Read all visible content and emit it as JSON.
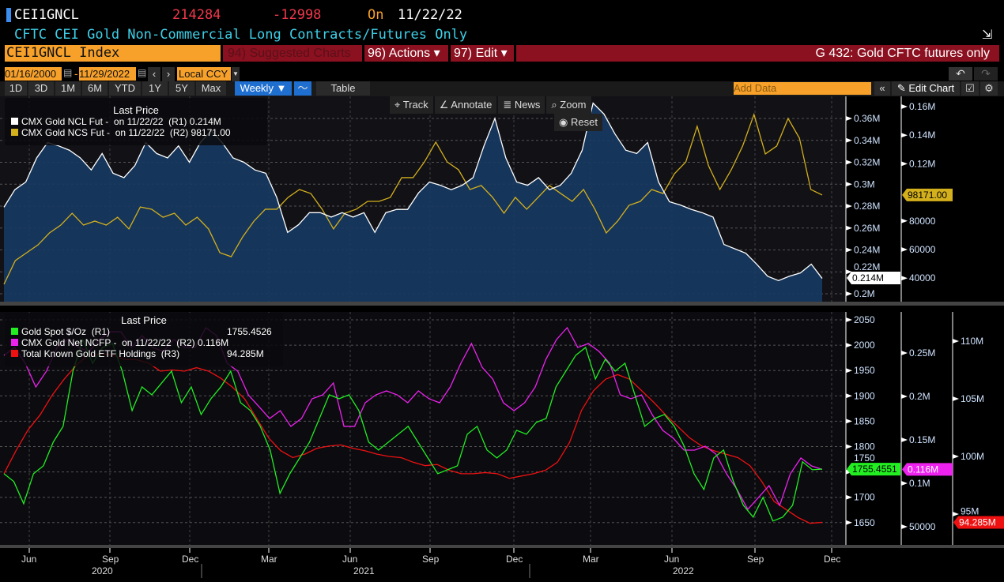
{
  "header": {
    "ticker": "CEI1GNCL",
    "last": "214284",
    "change": "-12998",
    "on_label": "On",
    "date": "11/22/22",
    "description": "CFTC CEI Gold Non-Commercial Long Contracts/Futures Only"
  },
  "toolbar": {
    "security": "CEI1GNCL Index",
    "suggested": "94) Suggested Charts",
    "actions": "96) Actions ▾",
    "edit": "97) Edit ▾",
    "chart_name": "G 432: Gold CFTC futures only",
    "start_date": "01/16/2000",
    "end_date": "11/29/2022",
    "currency": "Local CCY",
    "periods": [
      "1D",
      "3D",
      "1M",
      "6M",
      "YTD",
      "1Y",
      "5Y",
      "Max"
    ],
    "frequency": "Weekly ▼",
    "table": "Table",
    "add_data_placeholder": "Add Data",
    "edit_chart": "Edit Chart"
  },
  "tools": {
    "track": "Track",
    "annotate": "Annotate",
    "news": "News",
    "zoom": "Zoom",
    "reset": "Reset"
  },
  "colors": {
    "ncl": "#ffffff",
    "ncs": "#d4b01c",
    "spot": "#22ee22",
    "ncfp": "#ee22ee",
    "etf": "#ee1111",
    "area": "#173a62"
  },
  "chart_data": [
    {
      "type": "line",
      "title": "Last Price",
      "start": "2020-05-08",
      "end": "2022-11-22",
      "axes": {
        "R1": {
          "ticks": [
            "0.2M",
            "0.22M",
            "0.24M",
            "0.26M",
            "0.28M",
            "0.3M",
            "0.32M",
            "0.34M",
            "0.36M"
          ],
          "range_k": [
            194,
            376
          ]
        },
        "R2": {
          "ticks": [
            "40000",
            "60000",
            "80000",
            "0.12M",
            "0.14M",
            "0.16M"
          ],
          "range_k": [
            23,
            166
          ]
        }
      },
      "series": [
        {
          "name": "CMX Gold NCL Fut -  on 11/22/22  (R1)",
          "last": "0.214M",
          "tag": "0.214M",
          "axis": "R1",
          "units": "thousand contracts",
          "values": [
            279,
            295,
            302,
            324,
            338,
            335,
            331,
            324,
            313,
            328,
            310,
            306,
            317,
            338,
            328,
            324,
            335,
            320,
            338,
            349,
            338,
            324,
            320,
            313,
            310,
            288,
            256,
            263,
            274,
            274,
            270,
            274,
            270,
            274,
            256,
            274,
            277,
            277,
            292,
            302,
            299,
            295,
            299,
            306,
            335,
            360,
            324,
            302,
            299,
            306,
            295,
            299,
            310,
            331,
            374,
            364,
            346,
            331,
            328,
            338,
            302,
            284,
            281,
            277,
            274,
            270,
            245,
            241,
            237,
            227,
            216,
            212,
            216,
            219,
            227,
            214
          ]
        },
        {
          "name": "CMX Gold NCS Fut -  on 11/22/22  (R2)",
          "last": "98171.00",
          "tag": "98171.00",
          "axis": "R2",
          "units": "thousand contracts",
          "values": [
            35.7,
            52.3,
            57.8,
            63.3,
            71.6,
            77.1,
            85.4,
            77.1,
            79.9,
            77.1,
            82.6,
            74.4,
            89.8,
            88.2,
            82.6,
            85.4,
            77.1,
            82.6,
            74.4,
            57.8,
            55,
            68.8,
            79.9,
            88.2,
            88.2,
            96.5,
            102,
            99.2,
            88.2,
            74.4,
            85.4,
            88.2,
            93.7,
            93.7,
            96.5,
            110.3,
            110.3,
            121.3,
            135.2,
            121.3,
            115.8,
            102,
            104.8,
            96.5,
            85.4,
            96.5,
            88.2,
            96.5,
            104.8,
            99.2,
            93.7,
            102,
            88.2,
            71.6,
            79.9,
            90.9,
            93.7,
            102,
            99.2,
            113,
            121.3,
            146.2,
            118.6,
            102,
            115.8,
            132.4,
            154.5,
            126.9,
            132.4,
            151.7,
            137.9,
            102,
            98.17
          ]
        }
      ]
    },
    {
      "type": "line",
      "title": "Last Price",
      "start": "2020-05-08",
      "end": "2022-11-22",
      "axes": {
        "R1": {
          "ticks": [
            "1650",
            "1700",
            "1750",
            "1800",
            "1850",
            "1900",
            "1950",
            "2000",
            "2050"
          ],
          "range": [
            1606,
            2072
          ]
        },
        "R2": {
          "ticks": [
            "50000",
            "0.1M",
            "0.15M",
            "0.2M",
            "0.25M"
          ],
          "range_k": [
            30,
            294
          ]
        },
        "R3": {
          "ticks": [
            "95M",
            "100M",
            "105M",
            "110M"
          ],
          "range": [
            92.3,
            112.4
          ]
        }
      },
      "series": [
        {
          "name": "Gold Spot $/Oz  (R1)",
          "last": "1755.4526",
          "tag": "1755.4551",
          "axis": "R1",
          "values": [
            1746.5,
            1731,
            1687.4,
            1746.5,
            1762,
            1808.8,
            1839.9,
            1948.8,
            2011,
            1964.4,
            1995.5,
            2003.3,
            1948.8,
            1871,
            1917.7,
            1902.1,
            1925.5,
            1948.8,
            1886.6,
            1917.7,
            1863.2,
            1894.4,
            1917.7,
            1948.8,
            1886.6,
            1871,
            1839.9,
            1793.2,
            1707.6,
            1746.5,
            1777.6,
            1808.8,
            1855.5,
            1902.1,
            1894.4,
            1902.1,
            1871,
            1808.8,
            1793.2,
            1808.8,
            1824.3,
            1839.9,
            1808.8,
            1777.6,
            1746.5,
            1754.3,
            1762,
            1824.3,
            1839.9,
            1793.2,
            1777.6,
            1793.2,
            1832.1,
            1824.3,
            1847.7,
            1855.5,
            1917.7,
            1948.8,
            1980,
            1995.5,
            1933.3,
            1972.2,
            1948.8,
            1964.4,
            1902.1,
            1839.9,
            1855.5,
            1863.2,
            1839.9,
            1800.9,
            1746.5,
            1715.4,
            1777.6,
            1793.2,
            1731,
            1684.3,
            1660.9,
            1699.8,
            1653.1,
            1660.9,
            1684.3,
            1769.9,
            1754.3,
            1755.5
          ]
        },
        {
          "name": "CMX Gold Net NCFP -  on 11/22/22  (R2)",
          "last": "0.116M",
          "tag": "0.116M",
          "axis": "R2",
          "values": [
            247.3,
            256.4,
            238.2,
            210.9,
            229.1,
            256.4,
            265.5,
            256.4,
            251.8,
            265.5,
            274.5,
            274.5,
            256.4,
            270,
            256.4,
            251.8,
            265.5,
            256.4,
            256.4,
            279.1,
            270,
            238.2,
            229.1,
            201.8,
            188.2,
            174.5,
            183.6,
            165.5,
            174.5,
            197.3,
            201.8,
            215.5,
            165.5,
            165.5,
            192.7,
            201.8,
            206.4,
            201.8,
            192.7,
            206.4,
            197.3,
            192.7,
            210.9,
            238.2,
            260.9,
            233.6,
            220,
            192.7,
            183.6,
            192.7,
            210.9,
            242.7,
            265.5,
            279.1,
            256.4,
            260.9,
            251.8,
            238.2,
            201.8,
            197.3,
            201.8,
            179.1,
            160.9,
            151.8,
            138.2,
            138.2,
            142.7,
            133.6,
            110.9,
            92.7,
            70,
            83.6,
            97.3,
            74.5,
            110.9,
            129.1,
            120,
            116
          ]
        },
        {
          "name": "Total Known Gold ETF Holdings  (R3)",
          "last": "94.285M",
          "tag": "94.285M",
          "axis": "R3",
          "values": [
            98.5,
            100.5,
            102.3,
            103.6,
            105.3,
            106.7,
            107.9,
            108.8,
            108.9,
            108.8,
            108.4,
            108.4,
            108.1,
            107.4,
            107.5,
            107.4,
            107.7,
            107.4,
            106.8,
            106,
            105,
            103.3,
            101.6,
            100.5,
            99.9,
            100.2,
            100.7,
            100.9,
            101,
            100.7,
            100.5,
            100.2,
            100,
            99.9,
            99.5,
            99.2,
            99.3,
            98.8,
            98.5,
            98.5,
            98.6,
            98.5,
            98.1,
            98.3,
            98.5,
            98.8,
            99.5,
            101.2,
            104,
            105.7,
            106.7,
            107.1,
            106.7,
            105.7,
            104.7,
            103.6,
            102.6,
            101.6,
            100.9,
            100.5,
            100.2,
            99.9,
            99.2,
            97.8,
            96.1,
            95.4,
            94.7,
            94.2,
            94.285
          ]
        }
      ]
    }
  ],
  "x_axis": {
    "months": [
      "Jun",
      "Sep",
      "Dec",
      "Mar",
      "Jun",
      "Sep",
      "Dec",
      "Mar",
      "Jun",
      "Sep",
      "Dec"
    ],
    "years": [
      "2020",
      "2021",
      "2022"
    ]
  }
}
